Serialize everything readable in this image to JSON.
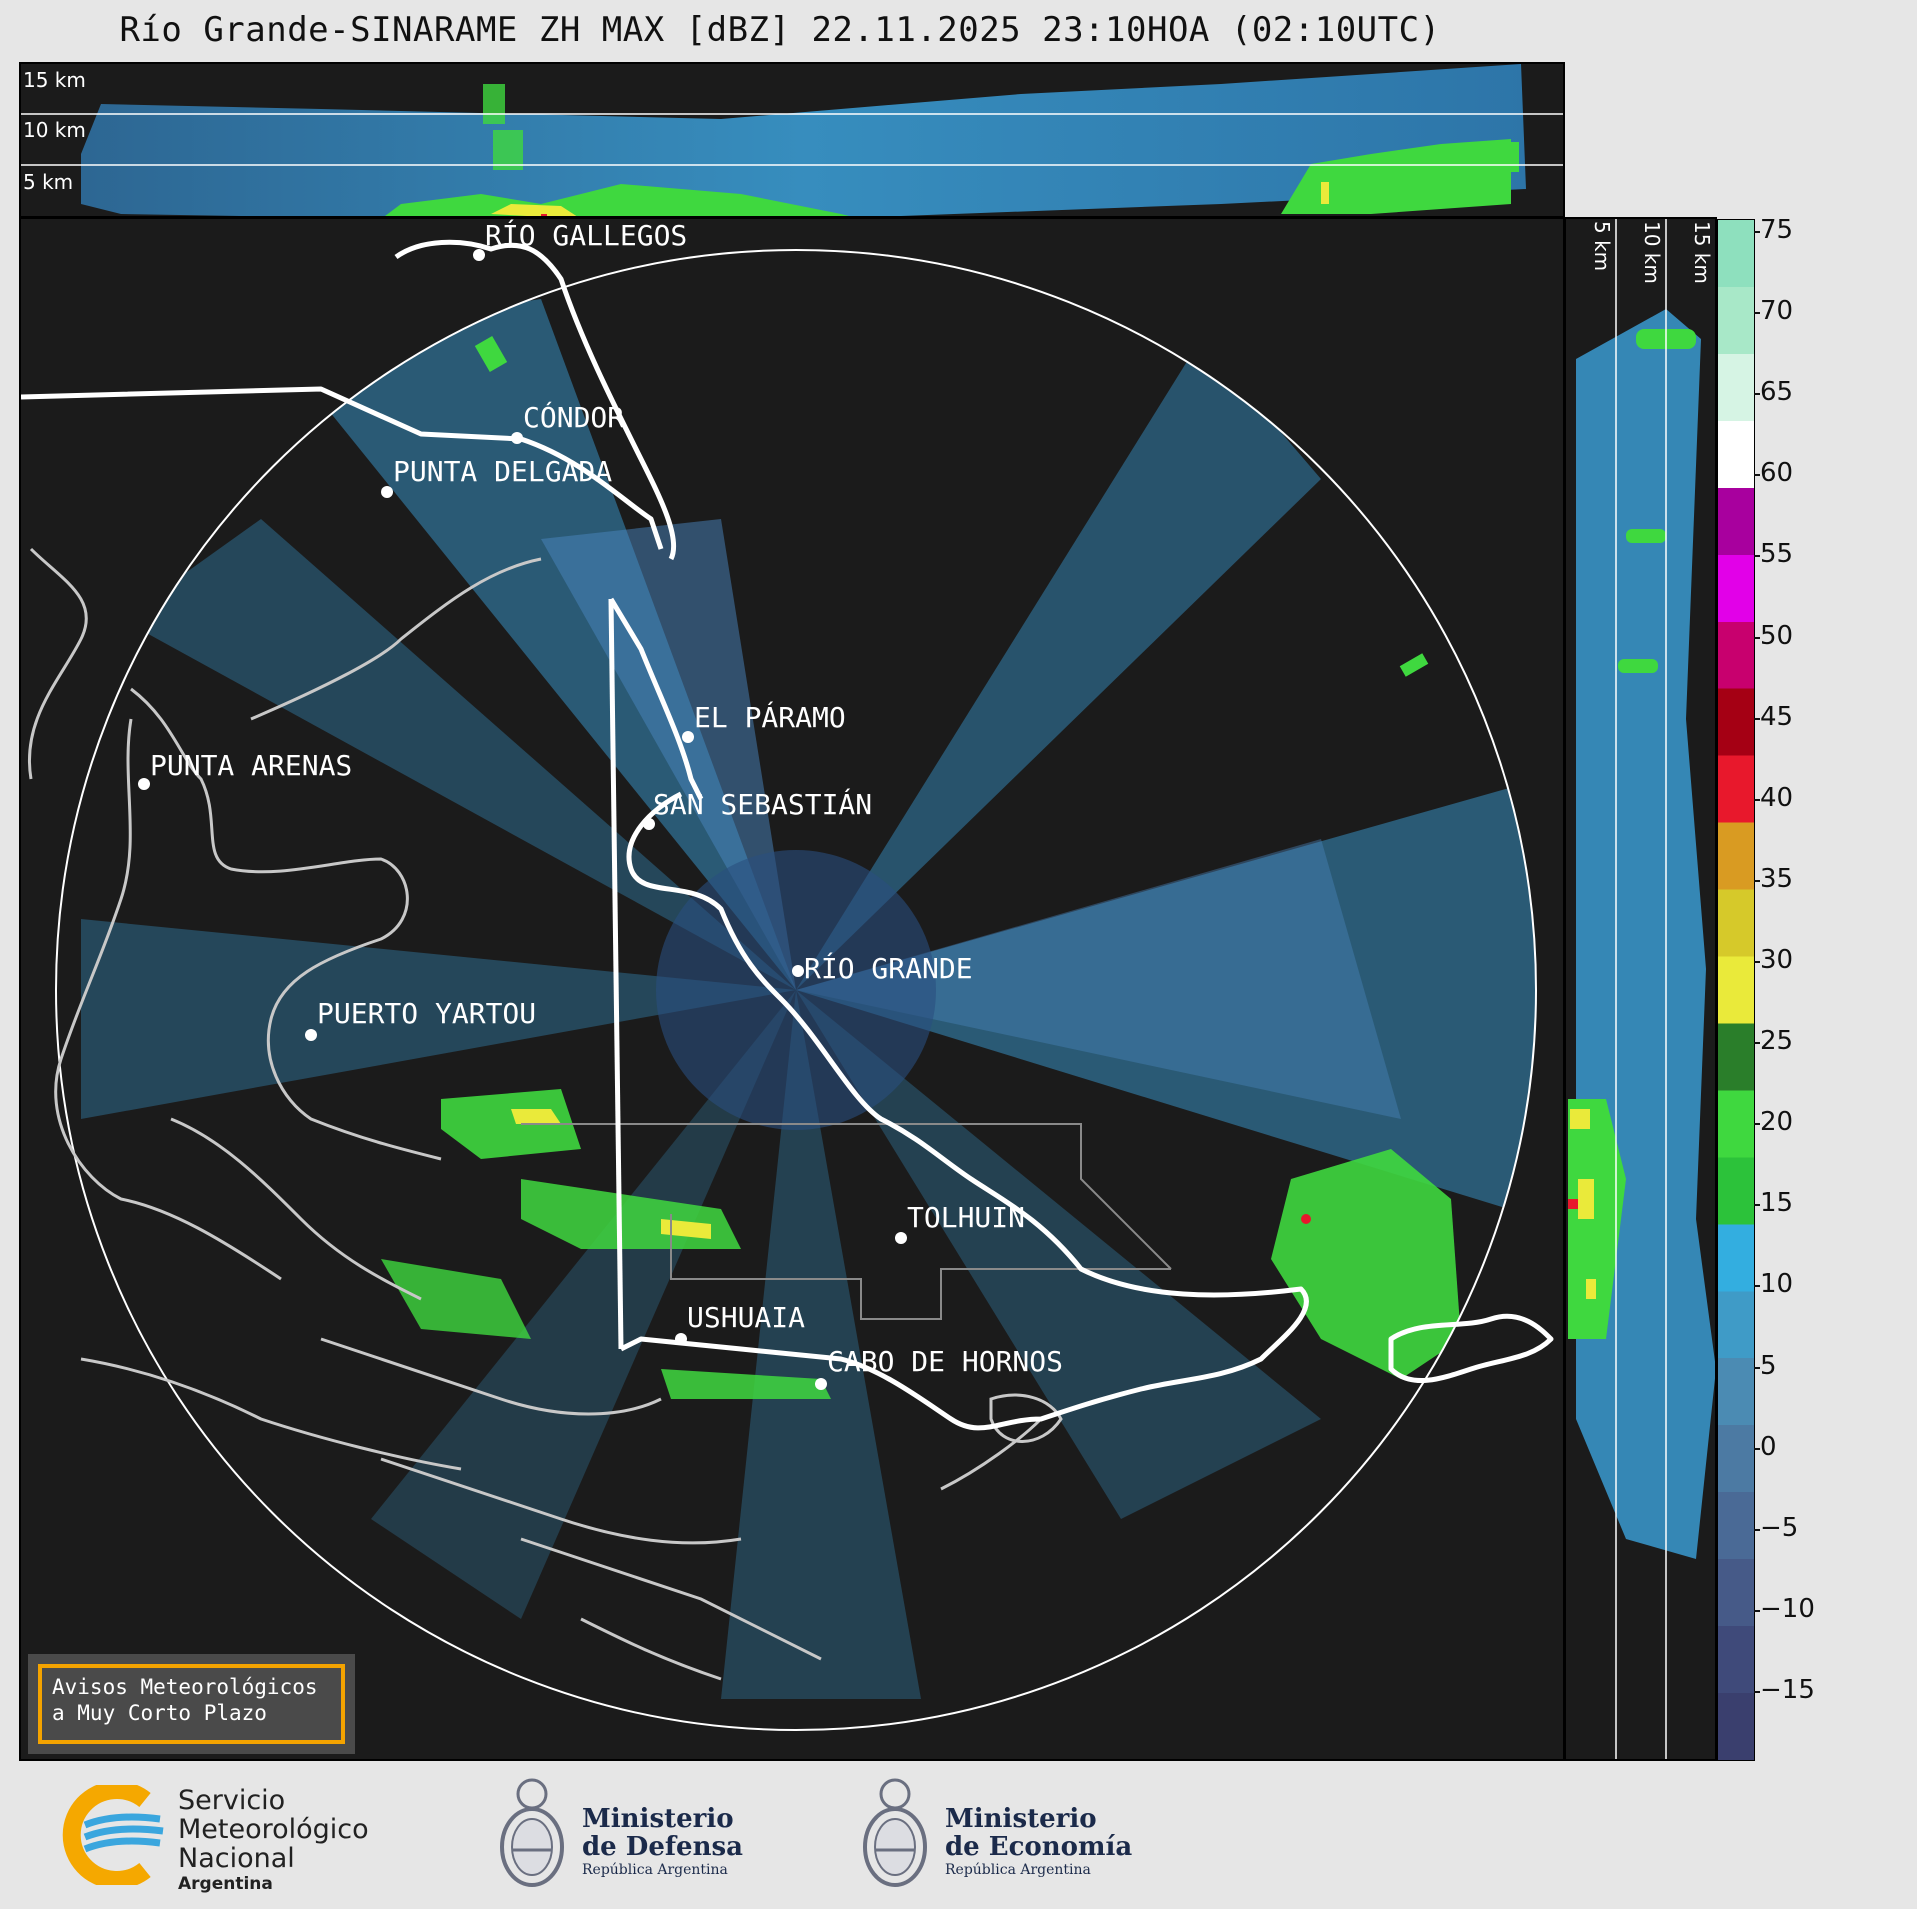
{
  "title": "Río Grande-SINARAME ZH MAX [dBZ] 22.11.2025 23:10HOA (02:10UTC)",
  "top_panel": {
    "altitude_labels": [
      "15 km",
      "10 km",
      "5 km"
    ]
  },
  "side_panel": {
    "altitude_labels": [
      "5 km",
      "10 km",
      "15 km"
    ]
  },
  "map": {
    "cities": [
      {
        "id": "rio-gallegos",
        "label": "RÍO GALLEGOS"
      },
      {
        "id": "condor",
        "label": "CÓNDOR"
      },
      {
        "id": "punta-delgada",
        "label": "PUNTA DELGADA"
      },
      {
        "id": "el-paramo",
        "label": "EL PÁRAMO"
      },
      {
        "id": "punta-arenas",
        "label": "PUNTA ARENAS"
      },
      {
        "id": "san-sebastian",
        "label": "SAN SEBASTIÁN"
      },
      {
        "id": "rio-grande",
        "label": "RÍO GRANDE"
      },
      {
        "id": "puerto-yartou",
        "label": "PUERTO YARTOU"
      },
      {
        "id": "tolhuin",
        "label": "TOLHUIN"
      },
      {
        "id": "ushuaia",
        "label": "USHUAIA"
      },
      {
        "id": "cabo-de-hornos",
        "label": "CABO DE HORNOS"
      }
    ]
  },
  "colorbar": {
    "unit": "dBZ",
    "ticks": [
      "75",
      "70",
      "65",
      "60",
      "55",
      "50",
      "45",
      "40",
      "35",
      "30",
      "25",
      "20",
      "15",
      "10",
      "5",
      "0",
      "−5",
      "−10",
      "−15"
    ],
    "colors": [
      "#3a3f6e",
      "#3f4a7a",
      "#465a88",
      "#4a6a96",
      "#4c7aa3",
      "#4b8bb3",
      "#3f9bc7",
      "#33aee0",
      "#2cc23a",
      "#3fd83f",
      "#2a7e2a",
      "#eaea3a",
      "#d6c92a",
      "#d99b22",
      "#e8182c",
      "#a50014",
      "#c8006e",
      "#e200e8",
      "#a8009e",
      "#ffffff",
      "#d6f4e4",
      "#a8e8c8",
      "#8ee0be"
    ]
  },
  "notice": {
    "line1": "Avisos Meteorológicos",
    "line2": "a Muy Corto Plazo"
  },
  "footer": {
    "smn": {
      "line1": "Servicio",
      "line2": "Meteorológico",
      "line3": "Nacional",
      "line4": "Argentina"
    },
    "defensa": {
      "line1": "Ministerio",
      "line2": "de Defensa",
      "line3": "República Argentina"
    },
    "economia": {
      "line1": "Ministerio",
      "line2": "de Economía",
      "line3": "República Argentina"
    }
  }
}
